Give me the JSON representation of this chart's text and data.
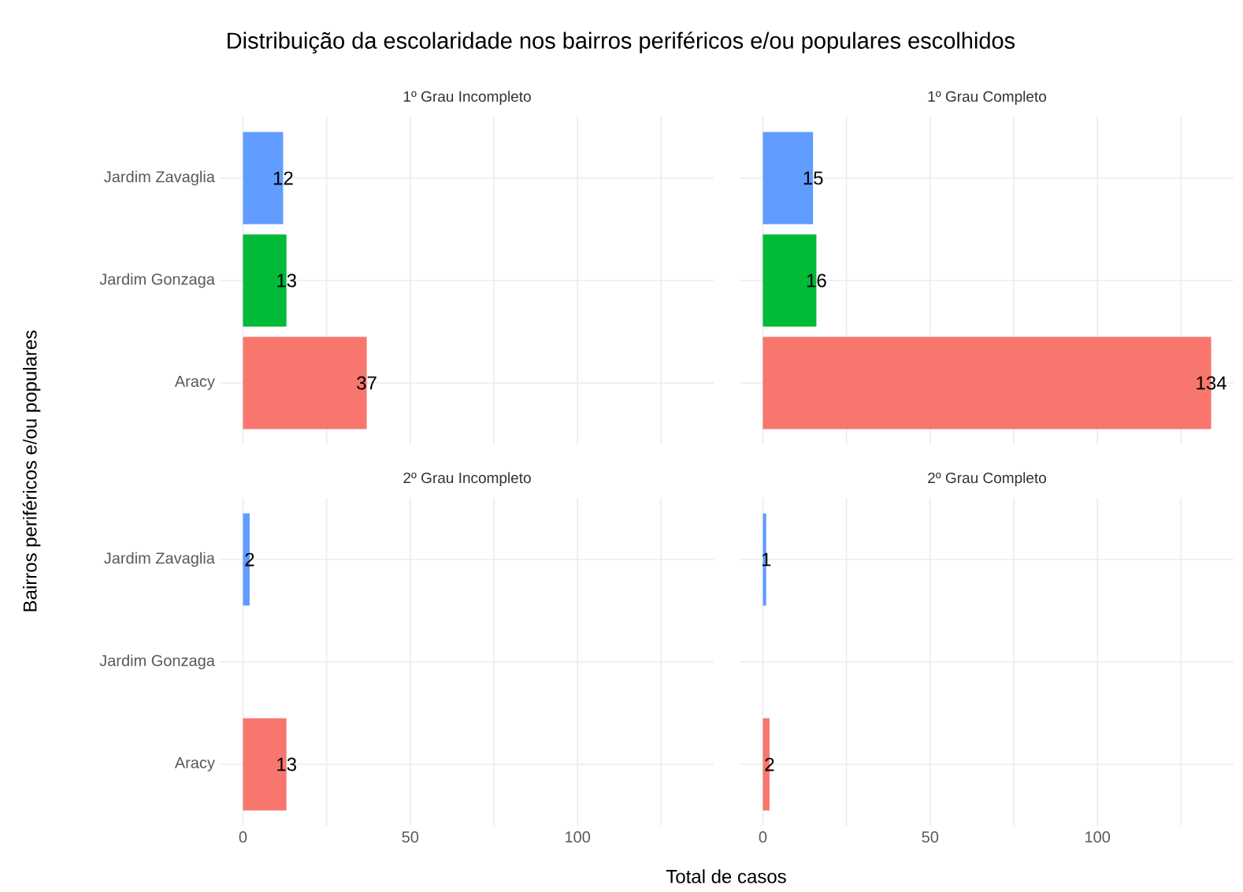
{
  "chart_data": [
    {
      "type": "bar",
      "orientation": "horizontal",
      "title": "Distribuição da escolaridade nos bairros periféricos e/ou populares escolhidos",
      "ylabel": "Bairros periféricos e/ou populares",
      "subtitle": "1º Grau Incompleto",
      "categories": [
        "Jardim Zavaglia",
        "Jardim Gonzaga",
        "Aracy"
      ],
      "values": [
        12,
        13,
        37
      ],
      "colors": [
        "#619cff",
        "#00ba38",
        "#f8766d"
      ],
      "xlim": [
        -6.7,
        140.7
      ],
      "xticks": [
        0,
        {
          "value": 25,
          "label": null
        },
        50,
        {
          "value": 75,
          "label": null
        },
        100,
        {
          "value": 125,
          "label": null
        }
      ],
      "grid": true,
      "data_labels": true,
      "tick_labels": "y"
    },
    {
      "type": "bar",
      "orientation": "horizontal",
      "subtitle": "1º Grau Completo",
      "categories": [
        null,
        null,
        null
      ],
      "values": [
        15,
        16,
        134
      ],
      "colors": [
        "#619cff",
        "#00ba38",
        "#f8766d"
      ],
      "xlim": [
        -6.7,
        140.7
      ],
      "xticks": [
        0,
        {
          "value": 25,
          "label": null
        },
        50,
        {
          "value": 75,
          "label": null
        },
        100,
        {
          "value": 125,
          "label": null
        }
      ],
      "grid": true,
      "data_labels": true,
      "tick_labels": false
    },
    {
      "type": "bar",
      "orientation": "horizontal",
      "xlabel": "Total de casos",
      "subtitle": "2º Grau Incompleto",
      "categories": [
        "Jardim Zavaglia",
        "Jardim Gonzaga",
        "Aracy"
      ],
      "values": [
        2,
        null,
        13
      ],
      "colors": [
        "#619cff",
        "#00ba38",
        "#f8766d"
      ],
      "xlim": [
        -6.7,
        140.7
      ],
      "xticks": [
        0,
        {
          "value": 25,
          "label": null
        },
        50,
        {
          "value": 75,
          "label": null
        },
        100,
        {
          "value": 125,
          "label": null
        }
      ],
      "grid": true,
      "data_labels": true
    },
    {
      "type": "bar",
      "orientation": "horizontal",
      "subtitle": "2º Grau Completo",
      "categories": [
        null,
        null,
        null
      ],
      "values": [
        1,
        null,
        2
      ],
      "colors": [
        "#619cff",
        "#00ba38",
        "#f8766d"
      ],
      "xlim": [
        -6.7,
        140.7
      ],
      "xticks": [
        0,
        {
          "value": 25,
          "label": null
        },
        50,
        {
          "value": 75,
          "label": null
        },
        100,
        {
          "value": 125,
          "label": null
        }
      ],
      "grid": true,
      "data_labels": true,
      "tick_labels": "x"
    }
  ]
}
